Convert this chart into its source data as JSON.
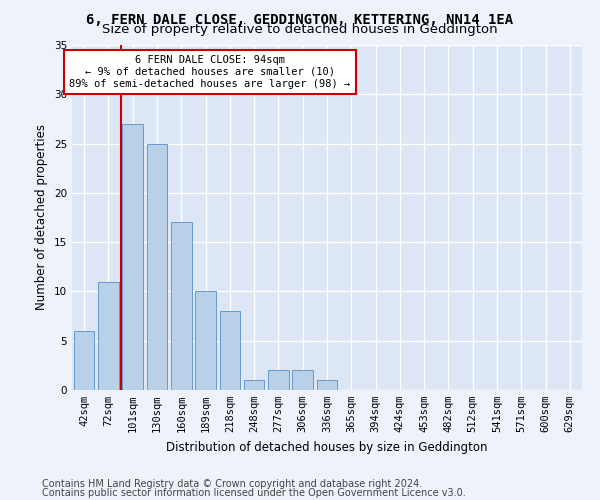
{
  "title": "6, FERN DALE CLOSE, GEDDINGTON, KETTERING, NN14 1EA",
  "subtitle": "Size of property relative to detached houses in Geddington",
  "xlabel": "Distribution of detached houses by size in Geddington",
  "ylabel": "Number of detached properties",
  "bar_labels": [
    "42sqm",
    "72sqm",
    "101sqm",
    "130sqm",
    "160sqm",
    "189sqm",
    "218sqm",
    "248sqm",
    "277sqm",
    "306sqm",
    "336sqm",
    "365sqm",
    "394sqm",
    "424sqm",
    "453sqm",
    "482sqm",
    "512sqm",
    "541sqm",
    "571sqm",
    "600sqm",
    "629sqm"
  ],
  "bar_values": [
    6,
    11,
    27,
    25,
    17,
    10,
    8,
    1,
    2,
    2,
    1,
    0,
    0,
    0,
    0,
    0,
    0,
    0,
    0,
    0,
    0
  ],
  "bar_color": "#b8d0e8",
  "bar_edge_color": "#6699cc",
  "vline_color": "#cc0000",
  "vline_x_index": 2,
  "annotation_text": "6 FERN DALE CLOSE: 94sqm\n← 9% of detached houses are smaller (10)\n89% of semi-detached houses are larger (98) →",
  "annotation_box_color": "#ffffff",
  "annotation_box_edge": "#cc0000",
  "ylim": [
    0,
    35
  ],
  "yticks": [
    0,
    5,
    10,
    15,
    20,
    25,
    30,
    35
  ],
  "footer_line1": "Contains HM Land Registry data © Crown copyright and database right 2024.",
  "footer_line2": "Contains public sector information licensed under the Open Government Licence v3.0.",
  "bg_color": "#eef2fb",
  "plot_bg_color": "#dce6f5",
  "grid_color": "#ffffff",
  "title_fontsize": 10,
  "subtitle_fontsize": 9.5,
  "axis_label_fontsize": 8.5,
  "tick_fontsize": 7.5,
  "annotation_fontsize": 7.5,
  "footer_fontsize": 7
}
